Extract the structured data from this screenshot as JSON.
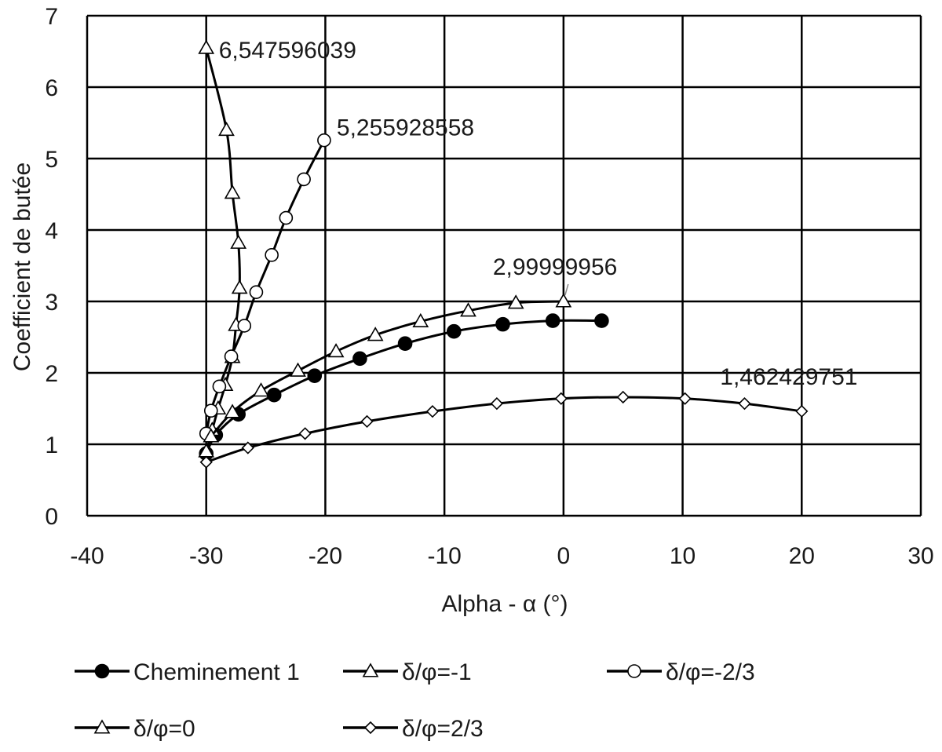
{
  "chart_data": {
    "type": "scatter",
    "title": "",
    "xlabel": "Alpha - α (°)",
    "ylabel": "Coefficient de butée",
    "xlim": [
      -40,
      30
    ],
    "ylim": [
      0,
      7
    ],
    "xticks": [
      -40,
      -30,
      -20,
      -10,
      0,
      10,
      20,
      30
    ],
    "yticks": [
      0,
      1,
      2,
      3,
      4,
      5,
      6,
      7
    ],
    "grid": true,
    "legend_position": "bottom",
    "series": [
      {
        "name": "Cheminement 1",
        "marker": "filled-circle",
        "x": [
          -30,
          -29.2,
          -27.3,
          -24.3,
          -20.9,
          -17.1,
          -13.3,
          -9.2,
          -5.1,
          -0.9,
          3.2
        ],
        "y": [
          0.87,
          1.13,
          1.42,
          1.69,
          1.96,
          2.2,
          2.41,
          2.58,
          2.68,
          2.73,
          2.73
        ]
      },
      {
        "name": "δ/φ=-1",
        "marker": "triangle",
        "x": [
          -30,
          -28.3,
          -27.8,
          -27.3,
          -27.2,
          -27.5,
          -27.8,
          -28.4,
          -29.0,
          -29.5,
          -30
        ],
        "y": [
          6.547596039,
          5.4,
          4.52,
          3.82,
          3.19,
          2.67,
          2.22,
          1.83,
          1.5,
          1.2,
          0.9
        ]
      },
      {
        "name": "δ/φ=-2/3",
        "marker": "open-circle",
        "x": [
          -20.1,
          -21.8,
          -23.3,
          -24.5,
          -25.8,
          -26.8,
          -27.9,
          -28.9,
          -29.6,
          -30
        ],
        "y": [
          5.255928558,
          4.71,
          4.17,
          3.65,
          3.13,
          2.66,
          2.23,
          1.81,
          1.47,
          1.15
        ]
      },
      {
        "name": "δ/φ=0",
        "marker": "triangle",
        "x": [
          0,
          -4,
          -8,
          -12,
          -15.8,
          -19.1,
          -22.3,
          -25.4,
          -27.8,
          -29.6
        ],
        "y": [
          2.99999956,
          2.98,
          2.87,
          2.72,
          2.53,
          2.3,
          2.03,
          1.75,
          1.45,
          1.11
        ]
      },
      {
        "name": "δ/φ=2/3",
        "marker": "diamond",
        "x": [
          -30,
          -26.5,
          -21.7,
          -16.5,
          -11,
          -5.6,
          -0.2,
          5,
          10.2,
          15.2,
          20
        ],
        "y": [
          0.75,
          0.95,
          1.15,
          1.32,
          1.46,
          1.57,
          1.64,
          1.66,
          1.64,
          1.57,
          1.462429751
        ]
      }
    ],
    "annotations": [
      {
        "text": "6,547596039",
        "x": -30,
        "y": 6.547596039
      },
      {
        "text": "5,255928558",
        "x": -20.1,
        "y": 5.255928558
      },
      {
        "text": "2,99999956",
        "x": 0,
        "y": 2.99999956
      },
      {
        "text": "1,462429751",
        "x": 20,
        "y": 1.462429751
      }
    ]
  }
}
